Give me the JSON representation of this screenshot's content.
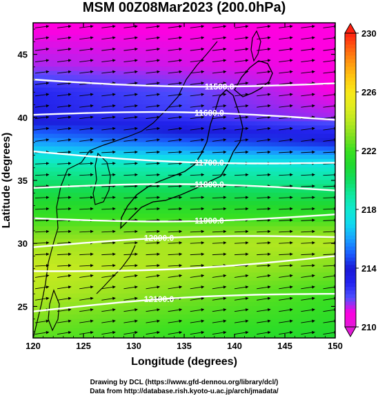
{
  "chart_data": {
    "type": "heatmap",
    "title": "MSM 00Z08Mar2023 (200.0hPa)",
    "xlabel": "Longitude (degrees)",
    "ylabel": "Latitude  (degrees)",
    "xlim": [
      120,
      150
    ],
    "ylim": [
      22.5,
      47.5
    ],
    "x_ticks": [
      "120",
      "125",
      "130",
      "135",
      "140",
      "145",
      "150"
    ],
    "y_ticks": [
      "25",
      "30",
      "35",
      "40",
      "45"
    ],
    "colorbar": {
      "min": 210,
      "max": 230,
      "ticks": [
        "210",
        "214",
        "218",
        "222",
        "226",
        "230"
      ]
    },
    "contours": [
      {
        "label": "11500.0",
        "label_lon": 138.5,
        "lat_west": 43.0,
        "lat_east": 42.7
      },
      {
        "label": "11600.0",
        "label_lon": 137.5,
        "lat_west": 40.2,
        "lat_east": 39.8
      },
      {
        "label": "11700.0",
        "label_lon": 137.5,
        "lat_west": 37.3,
        "lat_east": 36.4
      },
      {
        "label": "11800.0",
        "label_lon": 137.5,
        "lat_west": 34.4,
        "lat_east": 34.2
      },
      {
        "label": "11900.0",
        "label_lon": 137.5,
        "lat_west": 32.0,
        "lat_east": 32.3
      },
      {
        "label": "12000.0",
        "label_lon": 132.5,
        "lat_west": 29.7,
        "lat_east": 30.5
      },
      {
        "label": "",
        "label_lon": 137.5,
        "lat_west": 27.8,
        "lat_east": 29.0
      },
      {
        "label": "12100.0",
        "label_lon": 132.5,
        "lat_west": 24.6,
        "lat_east": 26.0
      }
    ],
    "temperature_field": [
      {
        "lat": 47,
        "west": 211,
        "east": 211
      },
      {
        "lat": 44,
        "west": 211.5,
        "east": 211
      },
      {
        "lat": 42,
        "west": 213,
        "east": 211
      },
      {
        "lat": 40,
        "west": 213.5,
        "east": 211.5
      },
      {
        "lat": 38,
        "west": 216,
        "east": 214
      },
      {
        "lat": 36,
        "west": 219,
        "east": 218
      },
      {
        "lat": 34,
        "west": 220.5,
        "east": 220
      },
      {
        "lat": 32,
        "west": 222,
        "east": 222
      },
      {
        "lat": 30,
        "west": 223.5,
        "east": 224
      },
      {
        "lat": 28,
        "west": 224.5,
        "east": 223
      },
      {
        "lat": 26,
        "west": 224,
        "east": 222
      },
      {
        "lat": 24,
        "west": 223,
        "east": 221.5
      },
      {
        "lat": 22.5,
        "west": 222.5,
        "east": 221
      }
    ],
    "wind": {
      "direction": "westerly",
      "note": ""
    }
  },
  "credits": {
    "line1": "Drawing by DCL (https://www.gfd-dennou.org/library/dcl/)",
    "line2": "Data from http://database.rish.kyoto-u.ac.jp/arch/jmadata/"
  }
}
